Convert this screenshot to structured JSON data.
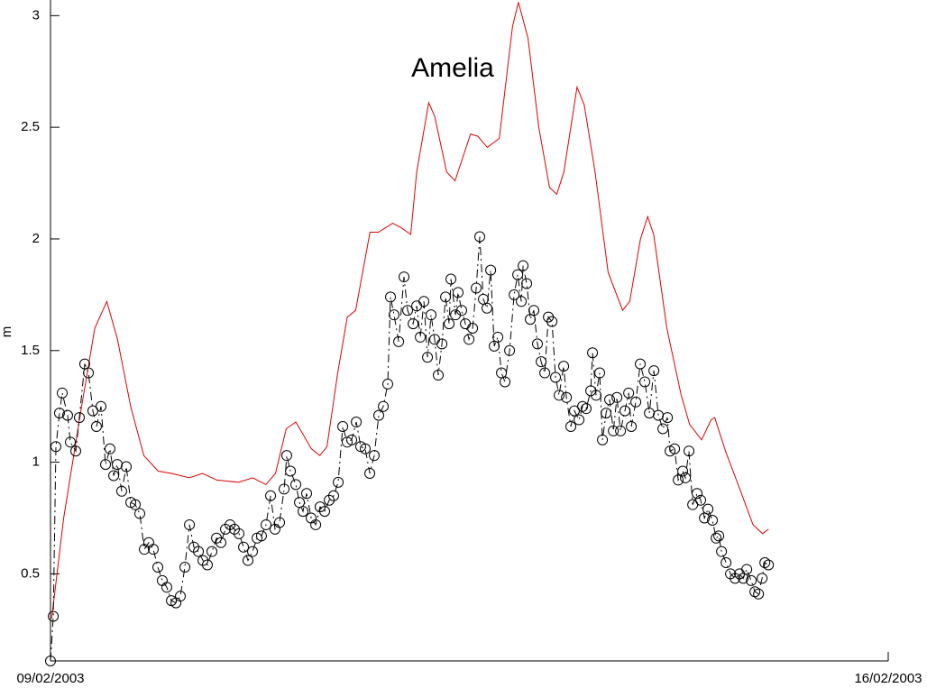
{
  "chart_data": {
    "type": "line",
    "title": "Amelia",
    "y_label": "m",
    "xlim": [
      0,
      7
    ],
    "xticks": [
      {
        "value": 0,
        "label": "09/02/2003"
      },
      {
        "value": 7,
        "label": "16/02/2003"
      }
    ],
    "ylim": [
      0.11,
      3.07
    ],
    "yticks": [
      0.5,
      1,
      1.5,
      2,
      2.5,
      3
    ],
    "grid": false,
    "series": [
      {
        "color": "#e00000",
        "marker": "none",
        "linestyle": "solid",
        "x": [
          0.01,
          0.11,
          0.26,
          0.37,
          0.47,
          0.56,
          0.67,
          0.78,
          0.9,
          1.01,
          1.16,
          1.27,
          1.39,
          1.57,
          1.69,
          1.8,
          1.88,
          1.97,
          2.05,
          2.18,
          2.25,
          2.31,
          2.4,
          2.48,
          2.55,
          2.67,
          2.74,
          2.86,
          2.93,
          3.01,
          3.06,
          3.16,
          3.21,
          3.31,
          3.38,
          3.51,
          3.57,
          3.65,
          3.75,
          3.86,
          3.91,
          3.99,
          4.08,
          4.17,
          4.23,
          4.29,
          4.4,
          4.46,
          4.55,
          4.66,
          4.78,
          4.84,
          4.93,
          4.99,
          5.04,
          5.15,
          5.27,
          5.34,
          5.44,
          5.52,
          5.55,
          5.64,
          5.76,
          5.87,
          5.95,
          6.0
        ],
        "values": [
          0.3,
          0.75,
          1.25,
          1.6,
          1.72,
          1.55,
          1.25,
          1.03,
          0.96,
          0.95,
          0.93,
          0.95,
          0.92,
          0.91,
          0.93,
          0.9,
          0.95,
          1.15,
          1.18,
          1.06,
          1.03,
          1.07,
          1.4,
          1.65,
          1.68,
          2.03,
          2.03,
          2.07,
          2.05,
          2.02,
          2.3,
          2.61,
          2.55,
          2.3,
          2.26,
          2.47,
          2.46,
          2.41,
          2.45,
          2.95,
          3.06,
          2.9,
          2.5,
          2.23,
          2.2,
          2.3,
          2.68,
          2.6,
          2.3,
          1.85,
          1.68,
          1.72,
          2.0,
          2.1,
          2.02,
          1.6,
          1.3,
          1.17,
          1.1,
          1.19,
          1.2,
          1.05,
          0.88,
          0.72,
          0.68,
          0.7
        ]
      },
      {
        "color": "#000000",
        "marker": "o",
        "linestyle": "dashdot",
        "x": [
          0,
          0.023,
          0.045,
          0.075,
          0.098,
          0.143,
          0.166,
          0.211,
          0.241,
          0.286,
          0.317,
          0.354,
          0.384,
          0.422,
          0.46,
          0.497,
          0.528,
          0.558,
          0.595,
          0.633,
          0.671,
          0.708,
          0.746,
          0.784,
          0.821,
          0.859,
          0.897,
          0.934,
          0.972,
          1.01,
          1.048,
          1.085,
          1.123,
          1.161,
          1.198,
          1.236,
          1.274,
          1.311,
          1.349,
          1.387,
          1.424,
          1.462,
          1.5,
          1.537,
          1.575,
          1.613,
          1.65,
          1.688,
          1.726,
          1.763,
          1.801,
          1.839,
          1.876,
          1.914,
          1.952,
          1.974,
          2.005,
          2.05,
          2.08,
          2.11,
          2.14,
          2.178,
          2.216,
          2.253,
          2.291,
          2.329,
          2.366,
          2.404,
          2.442,
          2.479,
          2.517,
          2.555,
          2.592,
          2.63,
          2.668,
          2.705,
          2.743,
          2.781,
          2.818,
          2.841,
          2.871,
          2.909,
          2.954,
          2.984,
          3.03,
          3.06,
          3.09,
          3.12,
          3.15,
          3.18,
          3.21,
          3.24,
          3.271,
          3.301,
          3.331,
          3.346,
          3.384,
          3.406,
          3.436,
          3.467,
          3.497,
          3.527,
          3.557,
          3.587,
          3.617,
          3.647,
          3.678,
          3.708,
          3.738,
          3.768,
          3.798,
          3.836,
          3.874,
          3.904,
          3.934,
          3.949,
          3.979,
          4.009,
          4.039,
          4.069,
          4.1,
          4.13,
          4.16,
          4.19,
          4.22,
          4.25,
          4.288,
          4.311,
          4.348,
          4.378,
          4.416,
          4.446,
          4.476,
          4.514,
          4.529,
          4.559,
          4.589,
          4.612,
          4.642,
          4.672,
          4.703,
          4.733,
          4.763,
          4.8,
          4.831,
          4.853,
          4.891,
          4.928,
          4.966,
          5.004,
          5.042,
          5.079,
          5.117,
          5.155,
          5.177,
          5.215,
          5.245,
          5.283,
          5.305,
          5.335,
          5.366,
          5.403,
          5.433,
          5.464,
          5.494,
          5.531,
          5.562,
          5.584,
          5.607,
          5.645,
          5.682,
          5.72,
          5.757,
          5.788,
          5.818,
          5.855,
          5.886,
          5.916,
          5.946,
          5.969,
          5.999
        ],
        "values": [
          0.11,
          0.31,
          1.07,
          1.22,
          1.31,
          1.21,
          1.09,
          1.05,
          1.2,
          1.44,
          1.4,
          1.23,
          1.16,
          1.25,
          0.99,
          1.06,
          0.94,
          0.99,
          0.87,
          0.98,
          0.82,
          0.81,
          0.77,
          0.61,
          0.64,
          0.61,
          0.53,
          0.47,
          0.44,
          0.38,
          0.37,
          0.4,
          0.53,
          0.72,
          0.62,
          0.6,
          0.56,
          0.54,
          0.6,
          0.66,
          0.64,
          0.7,
          0.72,
          0.7,
          0.68,
          0.62,
          0.56,
          0.6,
          0.66,
          0.67,
          0.72,
          0.85,
          0.7,
          0.73,
          0.88,
          1.03,
          0.96,
          0.9,
          0.82,
          0.78,
          0.86,
          0.75,
          0.72,
          0.8,
          0.78,
          0.83,
          0.85,
          0.91,
          1.16,
          1.09,
          1.1,
          1.18,
          1.07,
          1.06,
          0.95,
          1.03,
          1.21,
          1.25,
          1.35,
          1.74,
          1.66,
          1.54,
          1.83,
          1.68,
          1.62,
          1.7,
          1.56,
          1.72,
          1.47,
          1.66,
          1.55,
          1.39,
          1.53,
          1.74,
          1.62,
          1.82,
          1.66,
          1.76,
          1.68,
          1.62,
          1.55,
          1.6,
          1.78,
          2.01,
          1.73,
          1.69,
          1.86,
          1.52,
          1.56,
          1.4,
          1.36,
          1.5,
          1.75,
          1.84,
          1.72,
          1.88,
          1.8,
          1.64,
          1.68,
          1.53,
          1.45,
          1.4,
          1.65,
          1.63,
          1.38,
          1.3,
          1.43,
          1.29,
          1.16,
          1.23,
          1.19,
          1.25,
          1.24,
          1.32,
          1.49,
          1.3,
          1.4,
          1.1,
          1.22,
          1.28,
          1.14,
          1.29,
          1.14,
          1.23,
          1.31,
          1.16,
          1.27,
          1.44,
          1.36,
          1.22,
          1.41,
          1.21,
          1.15,
          1.2,
          1.05,
          1.06,
          0.92,
          0.96,
          0.93,
          1.05,
          0.81,
          0.86,
          0.83,
          0.75,
          0.79,
          0.74,
          0.66,
          0.67,
          0.6,
          0.55,
          0.5,
          0.48,
          0.5,
          0.48,
          0.52,
          0.47,
          0.42,
          0.41,
          0.48,
          0.55,
          0.54
        ]
      }
    ]
  }
}
